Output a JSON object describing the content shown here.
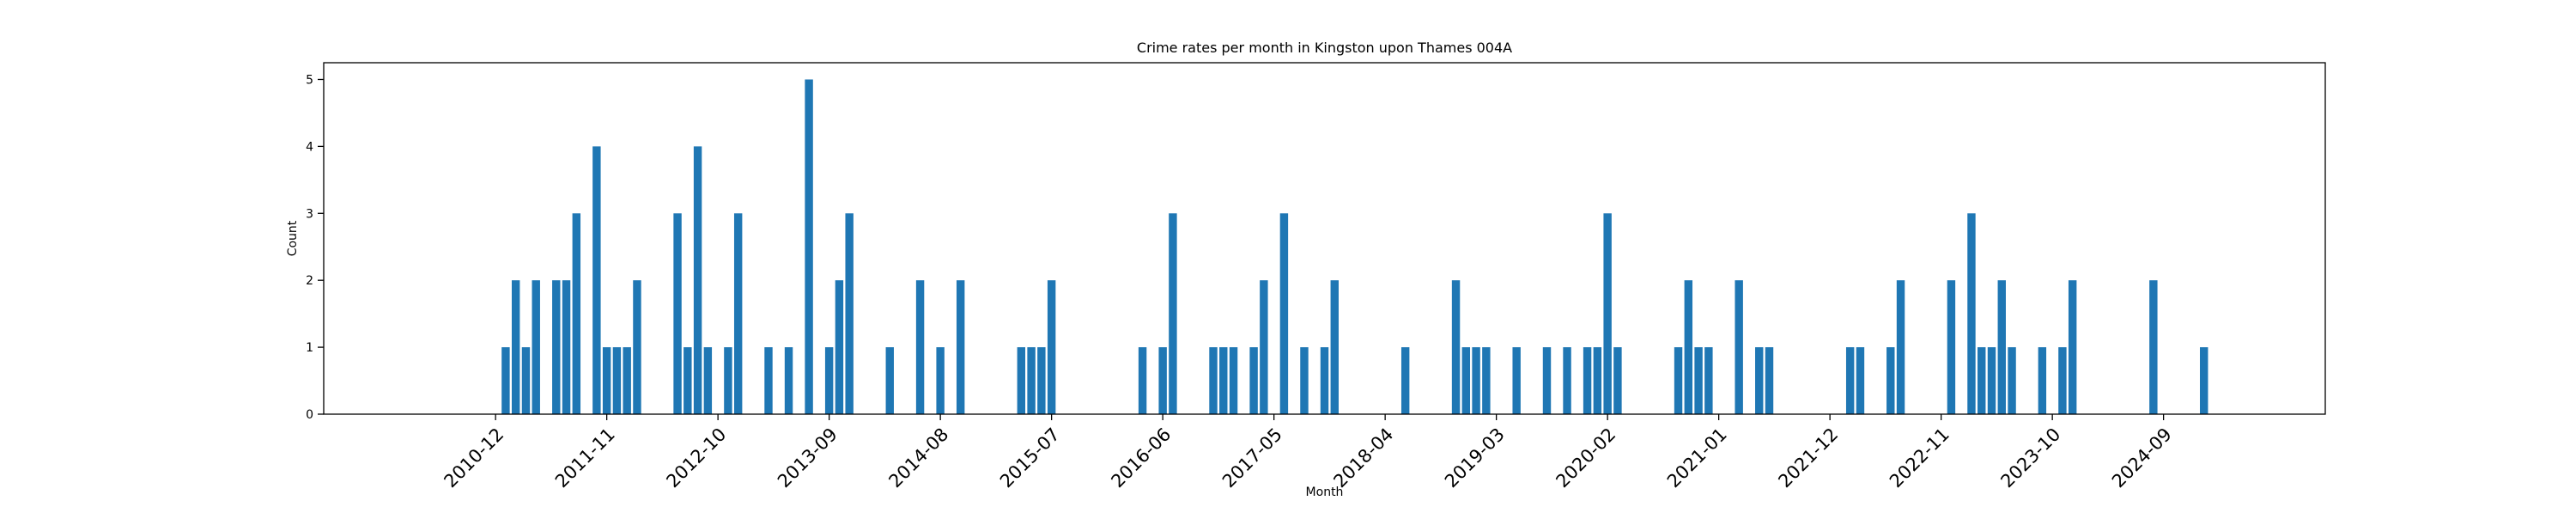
{
  "chart_data": {
    "type": "bar",
    "title": "Crime rates per month in Kingston upon Thames 004A",
    "xlabel": "Month",
    "ylabel": "Count",
    "ylim": [
      0,
      5.25
    ],
    "xlim": [
      "2009-07",
      "2026-01"
    ],
    "yticks": [
      0,
      1,
      2,
      3,
      4,
      5
    ],
    "xticks": [
      "2010-12",
      "2011-11",
      "2012-10",
      "2013-09",
      "2014-08",
      "2015-07",
      "2016-06",
      "2017-05",
      "2018-04",
      "2019-03",
      "2020-02",
      "2021-01",
      "2021-12",
      "2022-11",
      "2023-10",
      "2024-09"
    ],
    "grid": false,
    "legend": "none",
    "bar_color": "#1f77b4",
    "x": [
      "2011-01",
      "2011-02",
      "2011-03",
      "2011-04",
      "2011-06",
      "2011-07",
      "2011-08",
      "2011-10",
      "2011-11",
      "2011-12",
      "2012-01",
      "2012-02",
      "2012-06",
      "2012-07",
      "2012-08",
      "2012-09",
      "2012-11",
      "2012-12",
      "2013-03",
      "2013-05",
      "2013-07",
      "2013-09",
      "2013-10",
      "2013-11",
      "2014-03",
      "2014-06",
      "2014-08",
      "2014-10",
      "2015-04",
      "2015-05",
      "2015-06",
      "2015-07",
      "2016-04",
      "2016-06",
      "2016-07",
      "2016-11",
      "2016-12",
      "2017-01",
      "2017-03",
      "2017-04",
      "2017-06",
      "2017-08",
      "2017-10",
      "2017-11",
      "2018-06",
      "2018-11",
      "2018-12",
      "2019-01",
      "2019-02",
      "2019-05",
      "2019-08",
      "2019-10",
      "2019-12",
      "2020-01",
      "2020-02",
      "2020-03",
      "2020-09",
      "2020-10",
      "2020-11",
      "2020-12",
      "2021-03",
      "2021-05",
      "2021-06",
      "2022-02",
      "2022-03",
      "2022-06",
      "2022-07",
      "2022-12",
      "2023-02",
      "2023-03",
      "2023-04",
      "2023-05",
      "2023-06",
      "2023-09",
      "2023-11",
      "2023-12",
      "2024-08",
      "2025-01"
    ],
    "values": [
      1,
      2,
      1,
      2,
      2,
      2,
      3,
      4,
      1,
      1,
      1,
      2,
      3,
      1,
      4,
      1,
      1,
      3,
      1,
      1,
      5,
      1,
      2,
      3,
      1,
      2,
      1,
      2,
      1,
      1,
      1,
      2,
      1,
      1,
      3,
      1,
      1,
      1,
      1,
      2,
      3,
      1,
      1,
      2,
      1,
      2,
      1,
      1,
      1,
      1,
      1,
      1,
      1,
      1,
      3,
      1,
      1,
      2,
      1,
      1,
      2,
      1,
      1,
      1,
      1,
      1,
      2,
      2,
      3,
      1,
      1,
      2,
      1,
      1,
      1,
      2,
      2,
      1
    ]
  }
}
